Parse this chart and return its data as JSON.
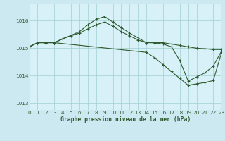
{
  "title": "Graphe pression niveau de la mer (hPa)",
  "background_color": "#cce8f0",
  "plot_background": "#d8f0f8",
  "grid_color": "#9ecfcf",
  "line_color": "#2d5a2d",
  "xlim": [
    0,
    23
  ],
  "ylim": [
    1012.75,
    1016.6
  ],
  "yticks": [
    1013,
    1014,
    1015,
    1016
  ],
  "xticks": [
    0,
    1,
    2,
    3,
    4,
    5,
    6,
    7,
    8,
    9,
    10,
    11,
    12,
    13,
    14,
    15,
    16,
    17,
    18,
    19,
    20,
    21,
    22,
    23
  ],
  "series1_x": [
    0,
    1,
    2,
    3,
    4,
    5,
    6,
    7,
    8,
    9,
    10,
    11,
    12,
    13,
    14,
    15,
    16,
    17,
    18,
    19,
    20,
    21,
    22,
    23
  ],
  "series1_y": [
    1015.05,
    1015.2,
    1015.2,
    1015.2,
    1015.35,
    1015.45,
    1015.55,
    1015.7,
    1015.85,
    1015.95,
    1015.8,
    1015.6,
    1015.45,
    1015.3,
    1015.2,
    1015.2,
    1015.2,
    1015.15,
    1015.1,
    1015.05,
    1015.0,
    1014.98,
    1014.95,
    1014.95
  ],
  "series2_x": [
    0,
    1,
    2,
    3,
    6,
    7,
    8,
    9,
    10,
    11,
    12,
    14,
    15,
    16,
    17,
    18,
    19,
    20,
    21,
    22,
    23
  ],
  "series2_y": [
    1015.05,
    1015.2,
    1015.2,
    1015.2,
    1015.6,
    1015.85,
    1016.05,
    1016.15,
    1015.95,
    1015.75,
    1015.55,
    1015.2,
    1015.2,
    1015.15,
    1015.05,
    1014.55,
    1013.8,
    1013.95,
    1014.1,
    1014.35,
    1014.9
  ],
  "series3_x": [
    0,
    1,
    2,
    3,
    14,
    15,
    16,
    17,
    18,
    19,
    20,
    21,
    22,
    23
  ],
  "series3_y": [
    1015.05,
    1015.2,
    1015.2,
    1015.2,
    1014.85,
    1014.65,
    1014.4,
    1014.15,
    1013.9,
    1013.65,
    1013.7,
    1013.75,
    1013.82,
    1014.85
  ]
}
